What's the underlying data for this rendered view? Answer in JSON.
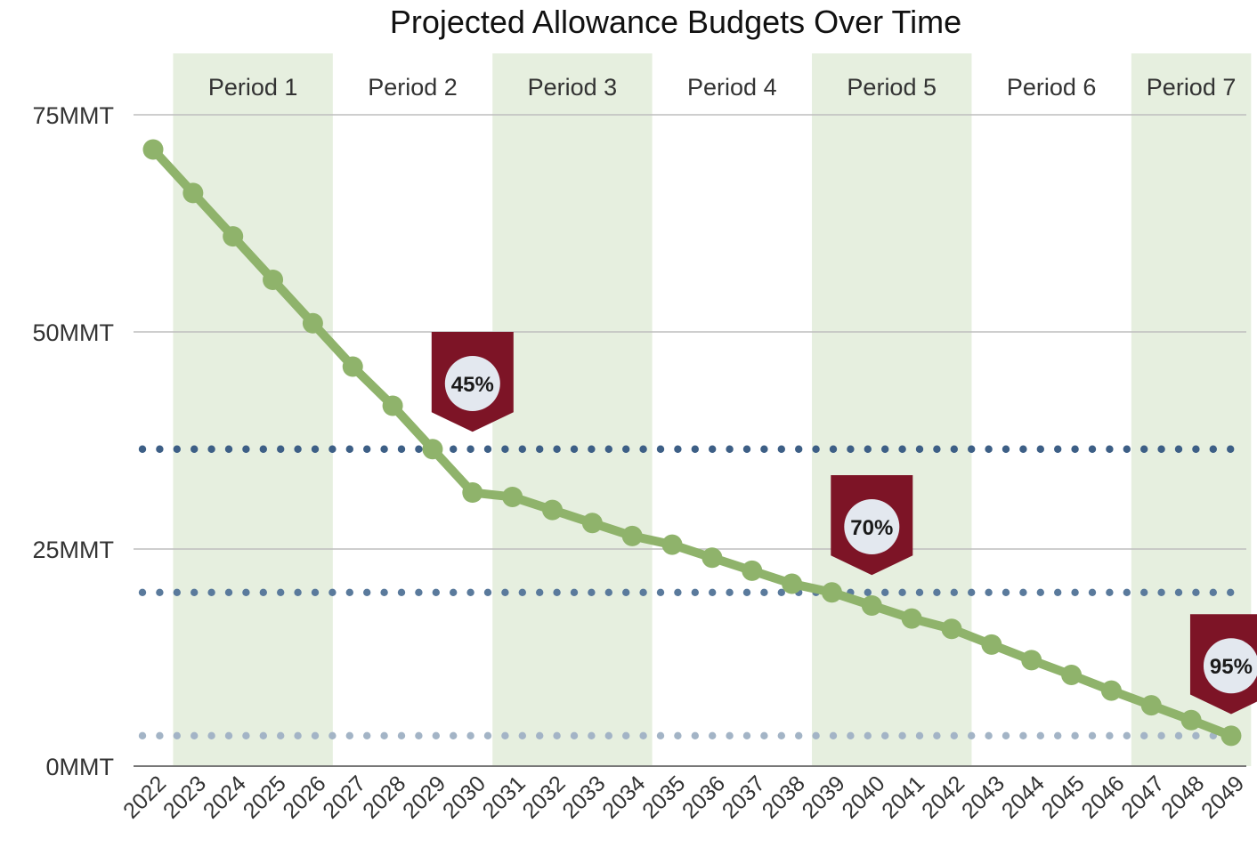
{
  "chart_data": {
    "type": "line",
    "title": "Projected Allowance Budgets Over Time",
    "xlabel": "",
    "ylabel": "",
    "ylim": [
      0,
      75
    ],
    "yticks": [
      {
        "value": 0,
        "label": "0MMT"
      },
      {
        "value": 25,
        "label": "25MMT"
      },
      {
        "value": 50,
        "label": "50MMT"
      },
      {
        "value": 75,
        "label": "75MMT"
      }
    ],
    "x": [
      2022,
      2023,
      2024,
      2025,
      2026,
      2027,
      2028,
      2029,
      2030,
      2031,
      2032,
      2033,
      2034,
      2035,
      2036,
      2037,
      2038,
      2039,
      2040,
      2041,
      2042,
      2043,
      2044,
      2045,
      2046,
      2047,
      2048,
      2049
    ],
    "series": [
      {
        "values": [
          71.0,
          66.0,
          61.0,
          56.0,
          51.0,
          46.0,
          41.5,
          36.5,
          31.5,
          31.0,
          29.5,
          28.0,
          26.5,
          25.5,
          24.0,
          22.5,
          21.0,
          20.0,
          18.5,
          17.0,
          15.8,
          14.0,
          12.2,
          10.5,
          8.7,
          7.0,
          5.3,
          3.5
        ],
        "color": "#8fb36b"
      }
    ],
    "periods": [
      {
        "label": "Period 1",
        "start": 2022.5,
        "end": 2026.5,
        "shaded": true
      },
      {
        "label": "Period 2",
        "start": 2026.5,
        "end": 2030.5,
        "shaded": false
      },
      {
        "label": "Period 3",
        "start": 2030.5,
        "end": 2034.5,
        "shaded": true
      },
      {
        "label": "Period 4",
        "start": 2034.5,
        "end": 2038.5,
        "shaded": false
      },
      {
        "label": "Period 5",
        "start": 2038.5,
        "end": 2042.5,
        "shaded": true
      },
      {
        "label": "Period 6",
        "start": 2042.5,
        "end": 2046.5,
        "shaded": false
      },
      {
        "label": "Period 7",
        "start": 2046.5,
        "end": 2049.5,
        "shaded": true
      }
    ],
    "reference_lines": [
      {
        "value": 36.5,
        "color": "#3d5f86"
      },
      {
        "value": 20.0,
        "color": "#5a7a9c"
      },
      {
        "value": 3.5,
        "color": "#a3b4c6"
      }
    ],
    "markers": [
      {
        "label": "45%",
        "x": 2030,
        "y_top": 50.0,
        "y_tip": 38.5
      },
      {
        "label": "70%",
        "x": 2040,
        "y_top": 33.5,
        "y_tip": 22.0
      },
      {
        "label": "95%",
        "x": 2049,
        "y_top": 17.5,
        "y_tip": 6.0
      }
    ],
    "grid": true,
    "colors": {
      "shade": "#e6efdf",
      "line": "#8fb36b",
      "marker_fill": "#7d1426",
      "marker_circle": "#e3e8ef",
      "grid": "#bdbdbd",
      "axis": "#777777"
    }
  }
}
